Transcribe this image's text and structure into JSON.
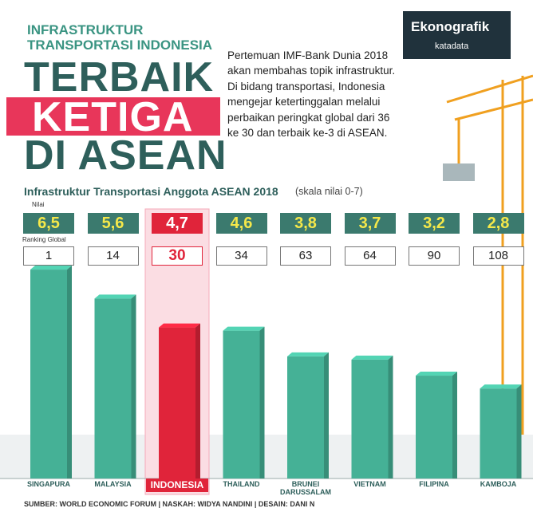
{
  "headline": {
    "kicker": "INFRASTRUKTUR TRANSPORTASI INDONESIA",
    "line1": "TERBAIK",
    "line2": "KETIGA",
    "line3": "DI ASEAN"
  },
  "paragraph": "Pertemuan IMF-Bank Dunia 2018 akan membahas topik infrastruktur. Di bidang transportasi, Indonesia mengejar ketertinggalan melalui perbaikan peringkat global dari 36 ke 30 dan terbaik ke-3 di ASEAN.",
  "brand": {
    "name": "Ekonografik",
    "publisher": "katadata"
  },
  "chart_data": {
    "type": "bar",
    "title": "Infrastruktur Transportasi Anggota ASEAN 2018",
    "subtitle": "(skala nilai 0-7)",
    "value_caption": "Nilai",
    "rank_caption": "Ranking Global",
    "categories": [
      "SINGAPURA",
      "MALAYSIA",
      "INDONESIA",
      "THAILAND",
      "BRUNEI DARUSSALAM",
      "VIETNAM",
      "FILIPINA",
      "KAMBOJA"
    ],
    "values": [
      6.5,
      5.6,
      4.7,
      4.6,
      3.8,
      3.7,
      3.2,
      2.8
    ],
    "value_labels": [
      "6,5",
      "5,6",
      "4,7",
      "4,6",
      "3,8",
      "3,7",
      "3,2",
      "2,8"
    ],
    "rankings": [
      1,
      14,
      30,
      34,
      63,
      64,
      90,
      108
    ],
    "color": "#45b196",
    "highlight": "INDONESIA",
    "highlight_color": "#e0243a",
    "source": "SUMBER: WORLD ECONOMIC FORUM | NASKAH: WIDYA NANDINI | DESAIN: DANI N"
  }
}
